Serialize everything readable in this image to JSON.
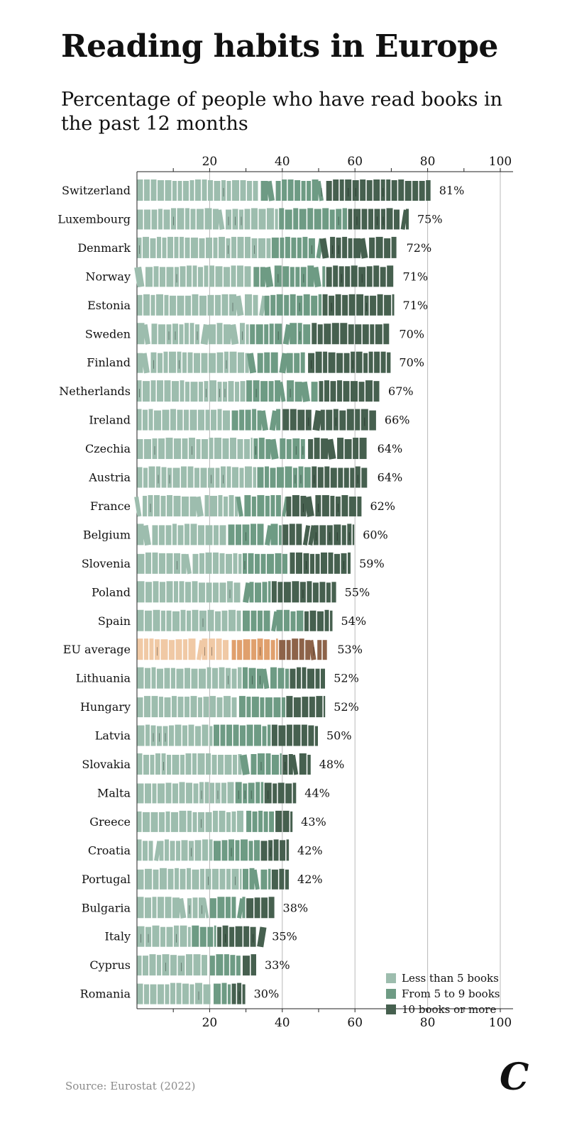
{
  "title": "Reading habits in Europe",
  "subtitle": "Percentage of people who have read books in the past 12 months",
  "source": "Source: Eurostat (2022)",
  "logo": "C",
  "colors": {
    "light": "#9dbdae",
    "mid": "#6e9b84",
    "dark": "#46604f",
    "eu_light": "#f0c9a5",
    "eu_mid": "#e0a06d",
    "eu_dark": "#8d6349",
    "grid": "#b8b8b8"
  },
  "legend": [
    {
      "label": "Less than 5 books",
      "color_key": "light"
    },
    {
      "label": "From 5 to 9 books",
      "color_key": "mid"
    },
    {
      "label": "10 books or more",
      "color_key": "dark"
    }
  ],
  "chart_data": {
    "type": "bar",
    "orientation": "horizontal",
    "stacked": true,
    "xlim": [
      0,
      100
    ],
    "xticks": [
      20,
      40,
      60,
      80,
      100
    ],
    "grid": true,
    "legend_position": "bottom-right",
    "series": [
      {
        "name": "Less than 5 books"
      },
      {
        "name": "From 5 to 9 books"
      },
      {
        "name": "10 books or more"
      }
    ],
    "rows": [
      {
        "country": "Switzerland",
        "total": 81,
        "label": "81%",
        "segments": [
          34,
          18,
          29
        ]
      },
      {
        "country": "Luxembourg",
        "total": 75,
        "label": "75%",
        "segments": [
          39,
          19,
          17
        ]
      },
      {
        "country": "Denmark",
        "total": 72,
        "label": "72%",
        "segments": [
          37,
          14,
          21
        ]
      },
      {
        "country": "Norway",
        "total": 71,
        "label": "71%",
        "segments": [
          32,
          20,
          19
        ]
      },
      {
        "country": "Estonia",
        "total": 71,
        "label": "71%",
        "segments": [
          35,
          16,
          20
        ]
      },
      {
        "country": "Sweden",
        "total": 70,
        "label": "70%",
        "segments": [
          31,
          17,
          22
        ]
      },
      {
        "country": "Finland",
        "total": 70,
        "label": "70%",
        "segments": [
          31,
          16,
          23
        ]
      },
      {
        "country": "Netherlands",
        "total": 67,
        "label": "67%",
        "segments": [
          30,
          20,
          17
        ]
      },
      {
        "country": "Ireland",
        "total": 66,
        "label": "66%",
        "segments": [
          26,
          14,
          26
        ]
      },
      {
        "country": "Czechia",
        "total": 64,
        "label": "64%",
        "segments": [
          32,
          15,
          17
        ]
      },
      {
        "country": "Austria",
        "total": 64,
        "label": "64%",
        "segments": [
          33,
          15,
          16
        ]
      },
      {
        "country": "France",
        "total": 62,
        "label": "62%",
        "segments": [
          28,
          13,
          21
        ]
      },
      {
        "country": "Belgium",
        "total": 60,
        "label": "60%",
        "segments": [
          25,
          15,
          20
        ]
      },
      {
        "country": "Slovenia",
        "total": 59,
        "label": "59%",
        "segments": [
          29,
          13,
          17
        ]
      },
      {
        "country": "Poland",
        "total": 55,
        "label": "55%",
        "segments": [
          29,
          8,
          18
        ]
      },
      {
        "country": "Spain",
        "total": 54,
        "label": "54%",
        "segments": [
          29,
          17,
          8
        ]
      },
      {
        "country": "EU average",
        "total": 53,
        "label": "53%",
        "highlight": true,
        "segments": [
          26,
          13,
          14
        ]
      },
      {
        "country": "Lithuania",
        "total": 52,
        "label": "52%",
        "segments": [
          29,
          13,
          10
        ]
      },
      {
        "country": "Hungary",
        "total": 52,
        "label": "52%",
        "segments": [
          28,
          13,
          11
        ]
      },
      {
        "country": "Latvia",
        "total": 50,
        "label": "50%",
        "segments": [
          21,
          16,
          13
        ]
      },
      {
        "country": "Slovakia",
        "total": 48,
        "label": "48%",
        "segments": [
          29,
          11,
          8
        ]
      },
      {
        "country": "Malta",
        "total": 44,
        "label": "44%",
        "segments": [
          27,
          8,
          9
        ]
      },
      {
        "country": "Greece",
        "total": 43,
        "label": "43%",
        "segments": [
          30,
          8,
          5
        ]
      },
      {
        "country": "Croatia",
        "total": 42,
        "label": "42%",
        "segments": [
          21,
          13,
          8
        ]
      },
      {
        "country": "Portugal",
        "total": 42,
        "label": "42%",
        "segments": [
          29,
          8,
          5
        ]
      },
      {
        "country": "Bulgaria",
        "total": 38,
        "label": "38%",
        "segments": [
          20,
          10,
          8
        ]
      },
      {
        "country": "Italy",
        "total": 35,
        "label": "35%",
        "segments": [
          15,
          7,
          13
        ]
      },
      {
        "country": "Cyprus",
        "total": 33,
        "label": "33%",
        "segments": [
          20,
          9,
          4
        ]
      },
      {
        "country": "Romania",
        "total": 30,
        "label": "30%",
        "segments": [
          21,
          5,
          4
        ]
      }
    ]
  }
}
